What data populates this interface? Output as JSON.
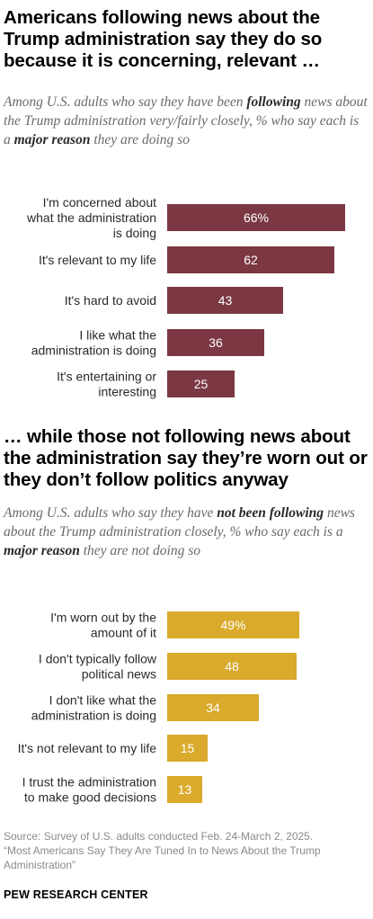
{
  "top": {
    "title": "Americans following news about the Trump administration say they do so because it is concerning, relevant …",
    "subtitle_parts": [
      {
        "text": "Among U.S. adults who say they have been ",
        "bold": false
      },
      {
        "text": "following",
        "bold": true
      },
      {
        "text": " news about the Trump administration very/fairly closely, % who say each is a ",
        "bold": false
      },
      {
        "text": "major reason",
        "bold": true
      },
      {
        "text": " they are doing so",
        "bold": false
      }
    ]
  },
  "bottom": {
    "title": "… while those not following news about the administration say they’re worn out or they don’t follow politics anyway",
    "subtitle_parts": [
      {
        "text": "Among U.S. adults who say they have ",
        "bold": false
      },
      {
        "text": "not been following",
        "bold": true
      },
      {
        "text": " news about the Trump administration closely, % who say each is a ",
        "bold": false
      },
      {
        "text": "major reason",
        "bold": true
      },
      {
        "text": " they are not doing so",
        "bold": false
      }
    ]
  },
  "chart_data": [
    {
      "type": "bar",
      "orientation": "horizontal",
      "color": "#7b3842",
      "categories": [
        [
          "I'm concerned about",
          "what the administration",
          "is doing"
        ],
        [
          "It's relevant to my life"
        ],
        [
          "It's hard to avoid"
        ],
        [
          "I like what the",
          "administration is doing"
        ],
        [
          "It's entertaining or",
          "interesting"
        ]
      ],
      "values": [
        66,
        62,
        43,
        36,
        25
      ],
      "value_labels": [
        "66%",
        "62",
        "43",
        "36",
        "25"
      ]
    },
    {
      "type": "bar",
      "orientation": "horizontal",
      "color": "#d9aa2b",
      "categories": [
        [
          "I'm worn out by the",
          "amount of it"
        ],
        [
          "I don't typically follow",
          "political news"
        ],
        [
          "I don't like what the",
          "administration is doing"
        ],
        [
          "It's not relevant to my life"
        ],
        [
          "I trust the administration",
          "to make good decisions"
        ]
      ],
      "values": [
        49,
        48,
        34,
        15,
        13
      ],
      "value_labels": [
        "49%",
        "48",
        "34",
        "15",
        "13"
      ]
    }
  ],
  "footer": {
    "source": "Source: Survey of U.S. adults conducted Feb. 24-March 2, 2025.",
    "report": "“Most Americans Say They Are Tuned In to News About the Trump Administration”",
    "logo": "PEW RESEARCH CENTER"
  }
}
